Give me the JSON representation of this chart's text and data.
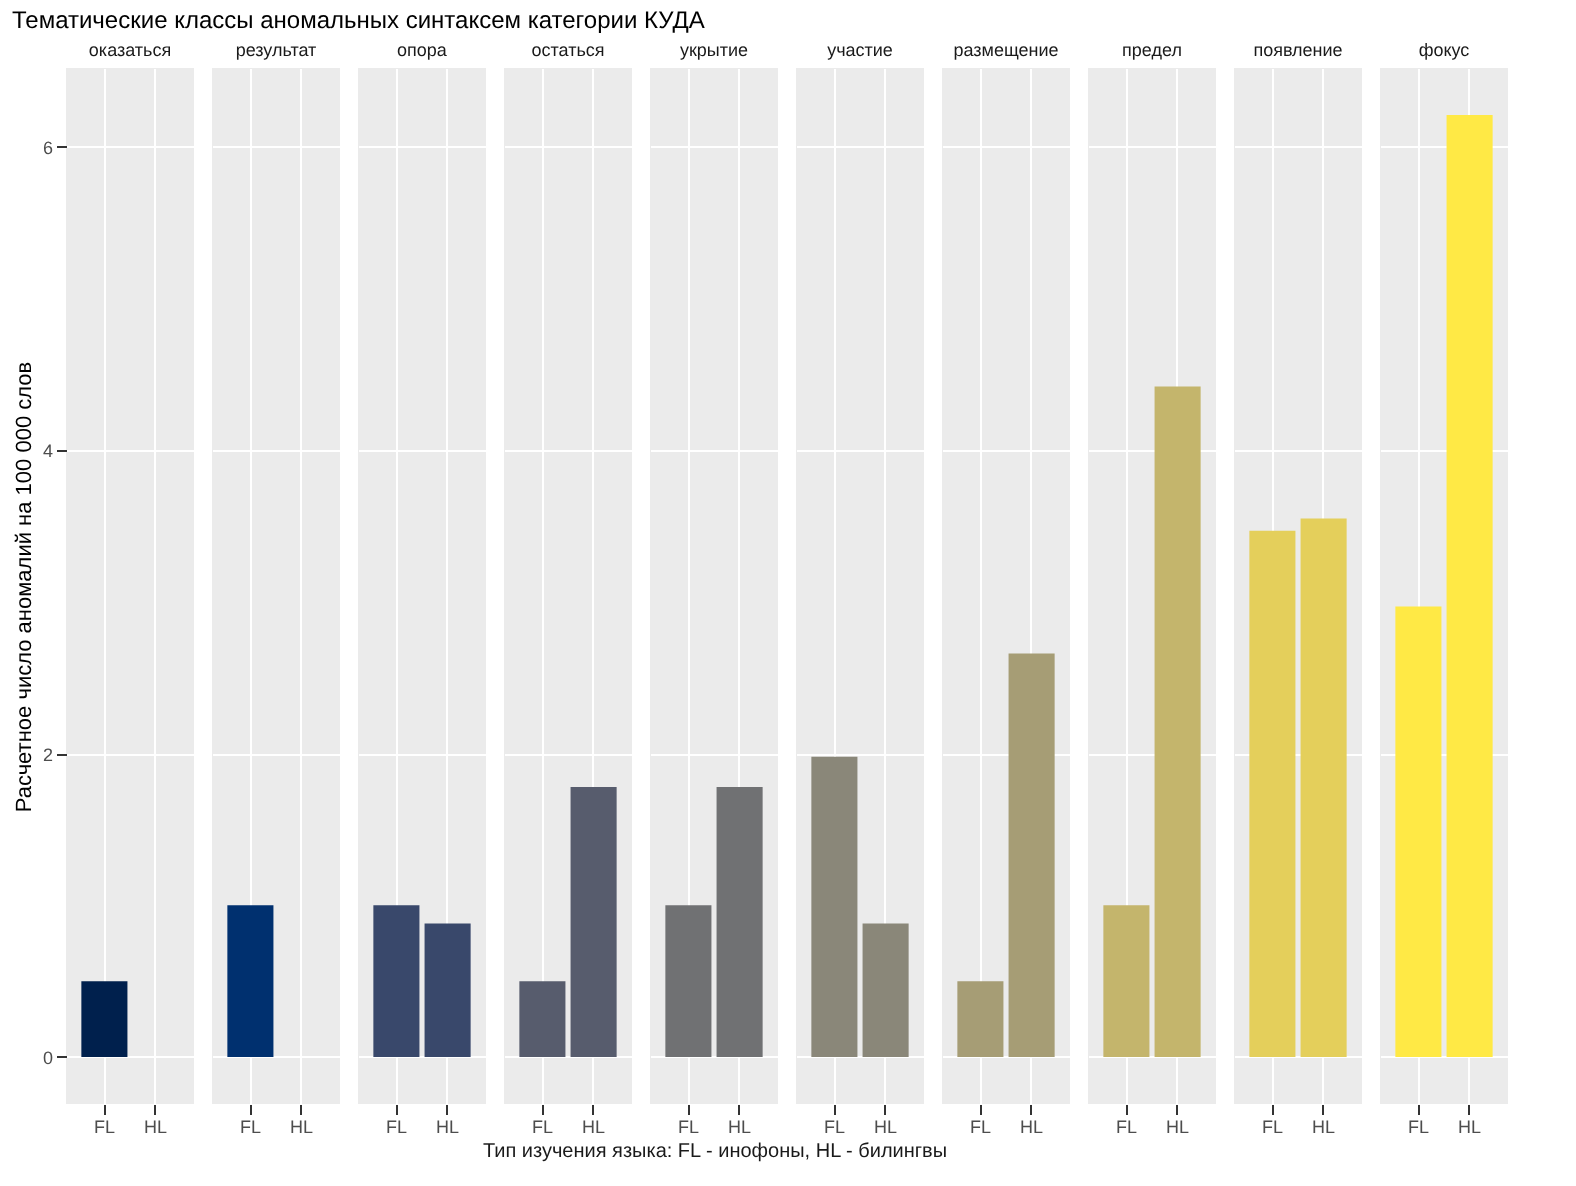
{
  "chart_data": [
    {
      "type": "bar",
      "title": "оказаться",
      "annotations": [
        "Тематические классы аномальных синтаксем категории КУДА"
      ],
      "ylabel": "Расчетное число аномалий на 100 000 слов",
      "categories": [
        "FL",
        "HL"
      ],
      "values": [
        0.5,
        null
      ],
      "colors": [
        "#00204d",
        "#00204d"
      ],
      "ylim": [
        -0.31,
        6.52
      ],
      "yticks": [
        0,
        2,
        4,
        6
      ],
      "grid": true
    },
    {
      "type": "bar",
      "title": "результат",
      "categories": [
        "FL",
        "HL"
      ],
      "values": [
        1.0,
        null
      ],
      "colors": [
        "#00306f",
        "#00306f"
      ],
      "ylim": [
        -0.31,
        6.52
      ],
      "yticks": [
        0,
        2,
        4,
        6
      ],
      "grid": true,
      "tick_labels": "x"
    },
    {
      "type": "bar",
      "title": "опора",
      "categories": [
        "FL",
        "HL"
      ],
      "values": [
        1.0,
        0.88
      ],
      "colors": [
        "#39486b",
        "#39486b"
      ],
      "ylim": [
        -0.31,
        6.52
      ],
      "yticks": [
        0,
        2,
        4,
        6
      ],
      "grid": true,
      "tick_labels": "x"
    },
    {
      "type": "bar",
      "title": "остаться",
      "categories": [
        "FL",
        "HL"
      ],
      "values": [
        0.5,
        1.78
      ],
      "colors": [
        "#575c6d",
        "#575c6d"
      ],
      "ylim": [
        -0.31,
        6.52
      ],
      "yticks": [
        0,
        2,
        4,
        6
      ],
      "grid": true,
      "tick_labels": "x"
    },
    {
      "type": "bar",
      "title": "укрытие",
      "xlabel": "Тип изучения языка: FL - инофоны, HL - билингвы",
      "categories": [
        "FL",
        "HL"
      ],
      "values": [
        1.0,
        1.78
      ],
      "colors": [
        "#707173",
        "#707173"
      ],
      "ylim": [
        -0.31,
        6.52
      ],
      "yticks": [
        0,
        2,
        4,
        6
      ],
      "grid": true,
      "tick_labels": "x"
    },
    {
      "type": "bar",
      "title": "участие",
      "categories": [
        "FL",
        "HL"
      ],
      "values": [
        1.98,
        0.88
      ],
      "colors": [
        "#8a8779",
        "#8a8779"
      ],
      "ylim": [
        -0.31,
        6.52
      ],
      "yticks": [
        0,
        2,
        4,
        6
      ],
      "grid": true,
      "tick_labels": "x"
    },
    {
      "type": "bar",
      "title": "размещение",
      "categories": [
        "FL",
        "HL"
      ],
      "values": [
        0.5,
        2.66
      ],
      "colors": [
        "#a69d75",
        "#a69d75"
      ],
      "ylim": [
        -0.31,
        6.52
      ],
      "yticks": [
        0,
        2,
        4,
        6
      ],
      "grid": true,
      "tick_labels": "x"
    },
    {
      "type": "bar",
      "title": "предел",
      "categories": [
        "FL",
        "HL"
      ],
      "values": [
        1.0,
        4.42
      ],
      "colors": [
        "#c4b56c",
        "#c4b56c"
      ],
      "ylim": [
        -0.31,
        6.52
      ],
      "yticks": [
        0,
        2,
        4,
        6
      ],
      "grid": true,
      "tick_labels": "x"
    },
    {
      "type": "bar",
      "title": "появление",
      "categories": [
        "FL",
        "HL"
      ],
      "values": [
        3.47,
        3.55
      ],
      "colors": [
        "#e4cf5b",
        "#e4cf5b"
      ],
      "ylim": [
        -0.31,
        6.52
      ],
      "yticks": [
        0,
        2,
        4,
        6
      ],
      "grid": true,
      "tick_labels": "x"
    },
    {
      "type": "bar",
      "title": "фокус",
      "categories": [
        "FL",
        "HL"
      ],
      "values": [
        2.97,
        6.21
      ],
      "colors": [
        "#ffe945",
        "#ffe945"
      ],
      "ylim": [
        -0.31,
        6.52
      ],
      "yticks": [
        0,
        2,
        4,
        6
      ],
      "grid": true,
      "tick_labels": "x"
    }
  ]
}
